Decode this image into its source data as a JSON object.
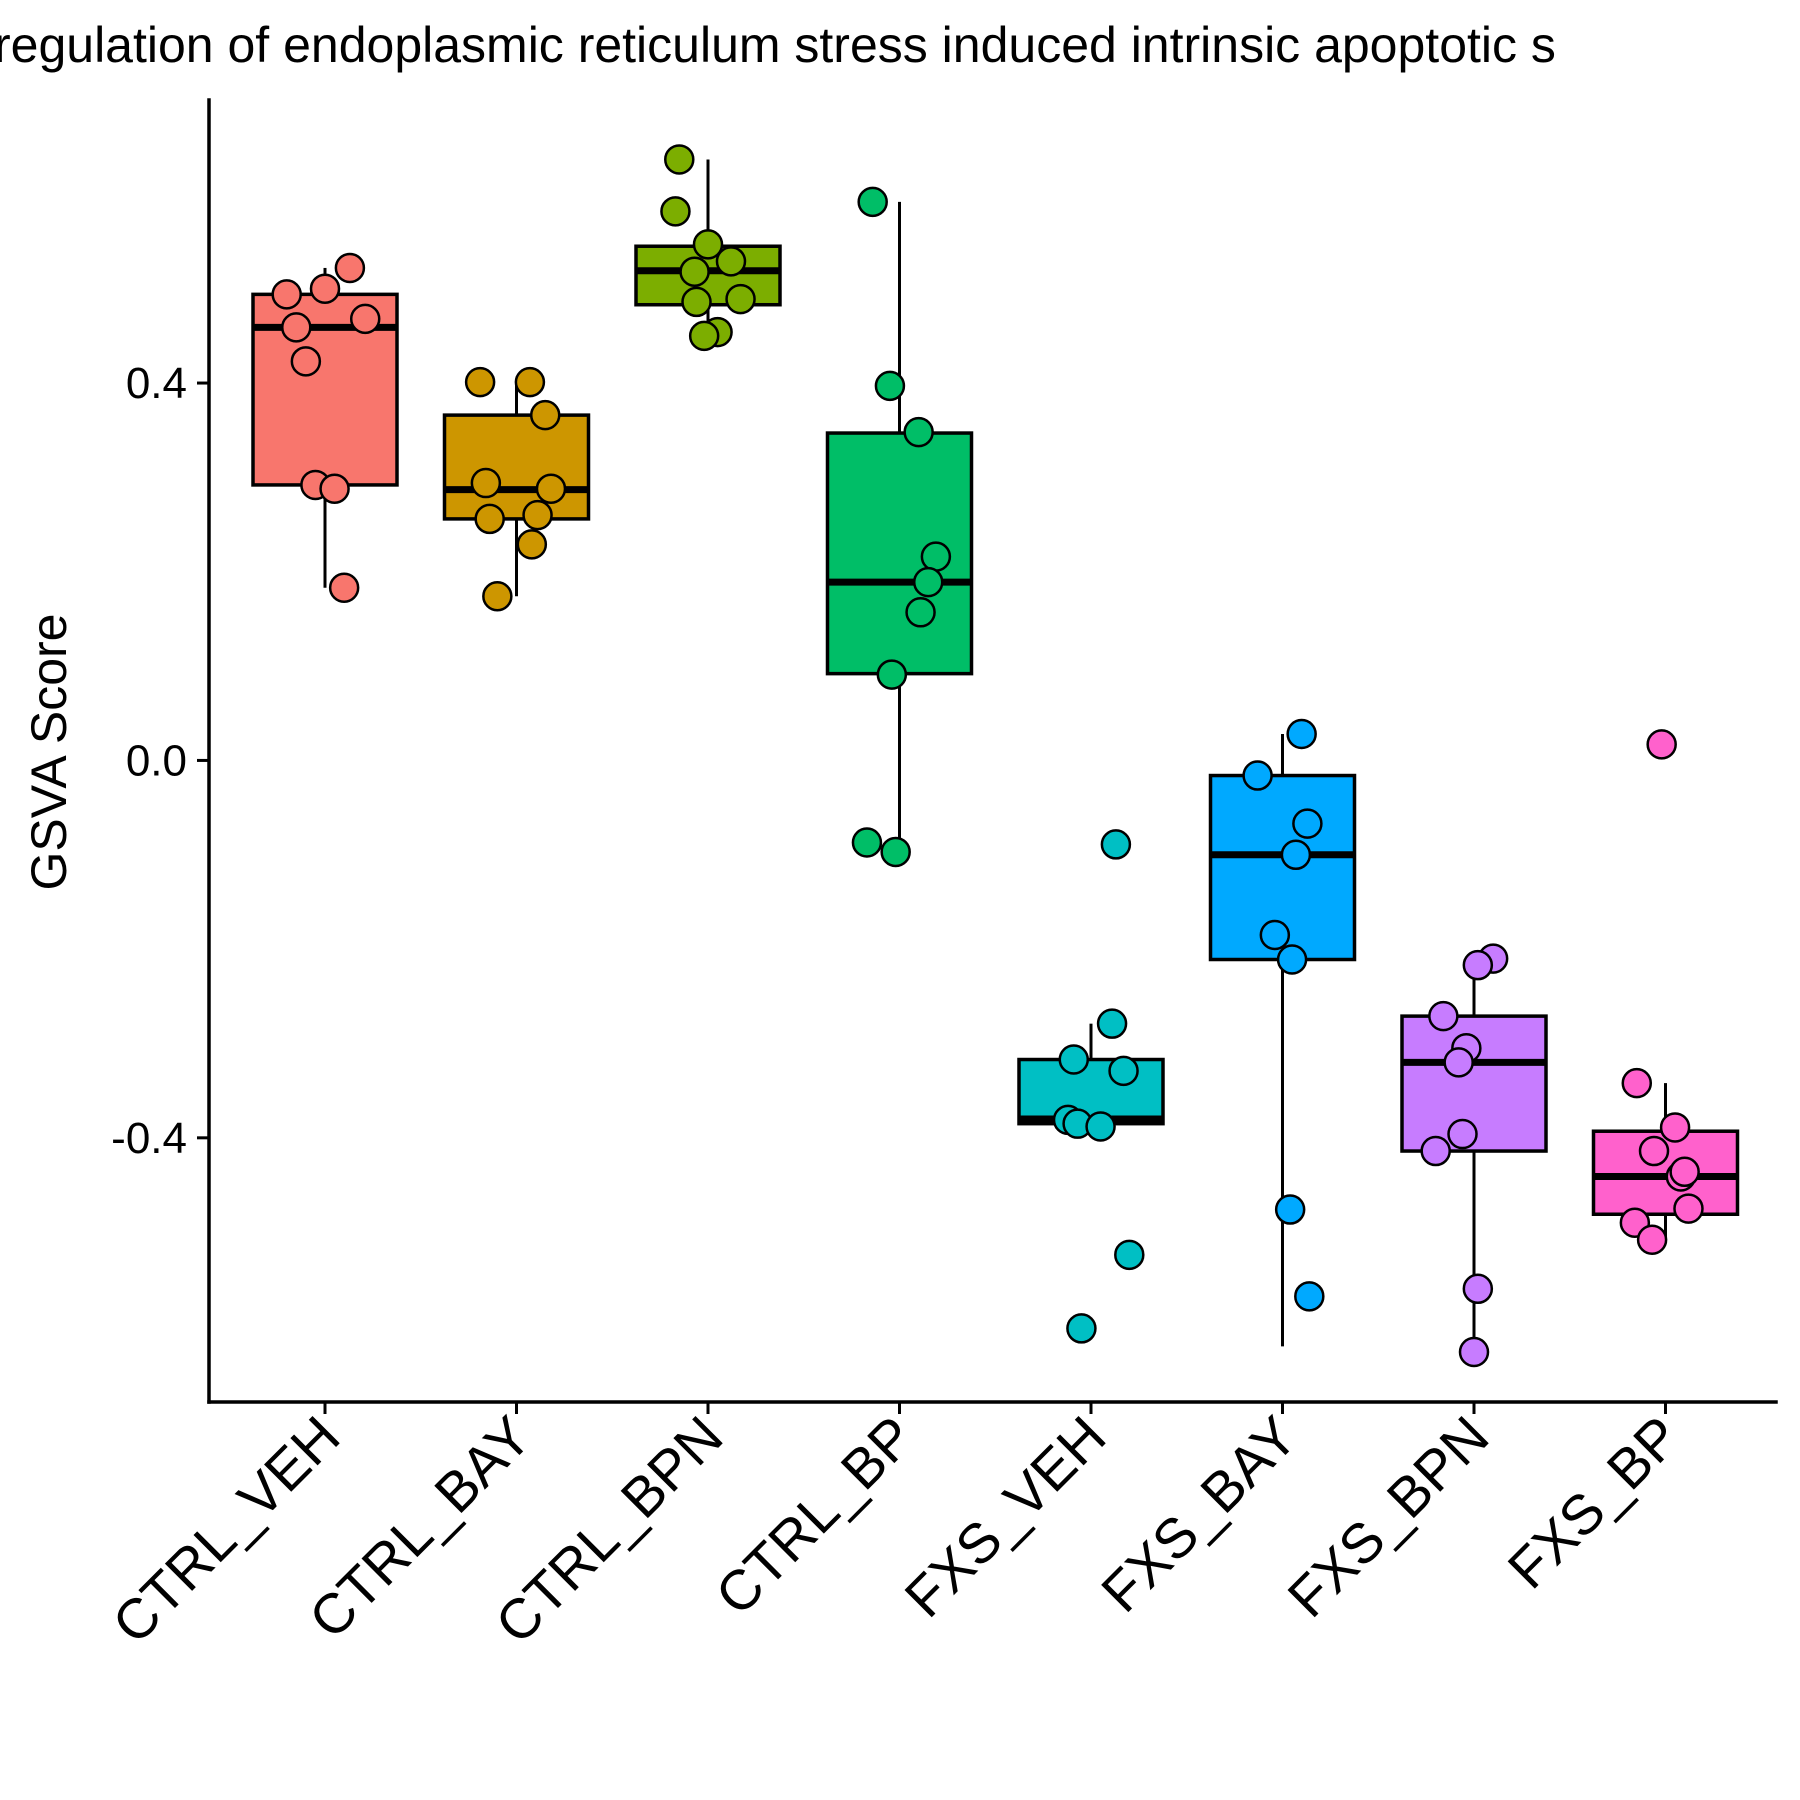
{
  "chart_data": {
    "type": "box",
    "title": "regulation of endoplasmic reticulum stress induced intrinsic apoptotic s",
    "xlabel": "",
    "ylabel": "GSVA Score",
    "ylim": [
      -0.68,
      0.7
    ],
    "yticks": [
      -0.4,
      0.0,
      0.4
    ],
    "ytick_labels": [
      "-0.4",
      "0.0",
      "0.4"
    ],
    "grid": false,
    "legend": "none",
    "categories": [
      "CTRL_VEH",
      "CTRL_BAY",
      "CTRL_BPN",
      "CTRL_BP",
      "FXS_VEH",
      "FXS_BAY",
      "FXS_BPN",
      "FXS_BP"
    ],
    "colors": [
      "#F8766D",
      "#CD9600",
      "#7CAE00",
      "#00BE67",
      "#00BFC4",
      "#00A9FF",
      "#C77CFF",
      "#FF61CC"
    ],
    "boxes": [
      {
        "lower_whisker": 0.183,
        "q1": 0.292,
        "median": 0.459,
        "q3": 0.494,
        "upper_whisker": 0.522
      },
      {
        "lower_whisker": 0.174,
        "q1": 0.256,
        "median": 0.287,
        "q3": 0.366,
        "upper_whisker": 0.401
      },
      {
        "lower_whisker": 0.45,
        "q1": 0.483,
        "median": 0.519,
        "q3": 0.545,
        "upper_whisker": 0.637
      },
      {
        "lower_whisker": -0.097,
        "q1": 0.092,
        "median": 0.189,
        "q3": 0.347,
        "upper_whisker": 0.592
      },
      {
        "lower_whisker": -0.385,
        "q1": -0.385,
        "median": -0.38,
        "q3": -0.317,
        "upper_whisker": -0.279
      },
      {
        "lower_whisker": -0.621,
        "q1": -0.211,
        "median": -0.1,
        "q3": -0.016,
        "upper_whisker": 0.028
      },
      {
        "lower_whisker": -0.627,
        "q1": -0.414,
        "median": -0.32,
        "q3": -0.271,
        "upper_whisker": -0.21
      },
      {
        "lower_whisker": -0.508,
        "q1": -0.481,
        "median": -0.441,
        "q3": -0.393,
        "upper_whisker": -0.342
      }
    ],
    "points": [
      {
        "x": [
          -0.2,
          -0.15,
          0.0,
          0.13,
          0.21,
          -0.1,
          -0.05,
          0.05,
          0.1
        ],
        "y": [
          0.494,
          0.459,
          0.5,
          0.522,
          0.468,
          0.423,
          0.292,
          0.288,
          0.183
        ]
      },
      {
        "x": [
          -0.19,
          0.07,
          0.15,
          -0.16,
          0.18,
          -0.14,
          0.11,
          0.08,
          -0.1
        ],
        "y": [
          0.401,
          0.401,
          0.366,
          0.294,
          0.288,
          0.256,
          0.26,
          0.229,
          0.174
        ]
      },
      {
        "x": [
          -0.15,
          -0.17,
          0.0,
          0.12,
          -0.07,
          0.17,
          -0.06,
          0.05,
          -0.02
        ],
        "y": [
          0.637,
          0.582,
          0.547,
          0.529,
          0.518,
          0.489,
          0.486,
          0.454,
          0.45
        ]
      },
      {
        "x": [
          -0.14,
          -0.05,
          0.1,
          0.19,
          0.15,
          0.11,
          -0.04,
          -0.17,
          -0.02
        ],
        "y": [
          0.592,
          0.397,
          0.348,
          0.216,
          0.189,
          0.157,
          0.091,
          -0.087,
          -0.097
        ]
      },
      {
        "x": [
          0.13,
          0.11,
          -0.09,
          0.17,
          -0.12,
          -0.07,
          0.05,
          0.2,
          -0.05
        ],
        "y": [
          -0.089,
          -0.279,
          -0.317,
          -0.329,
          -0.381,
          -0.385,
          -0.388,
          -0.524,
          -0.602
        ]
      },
      {
        "x": [
          0.1,
          -0.13,
          0.13,
          0.07,
          -0.04,
          0.05,
          0.04,
          0.14
        ],
        "y": [
          0.028,
          -0.016,
          -0.067,
          -0.1,
          -0.185,
          -0.211,
          -0.476,
          -0.568
        ]
      },
      {
        "x": [
          0.1,
          0.02,
          -0.16,
          -0.04,
          -0.08,
          -0.06,
          -0.2,
          0.02,
          0.0
        ],
        "y": [
          -0.21,
          -0.217,
          -0.271,
          -0.305,
          -0.32,
          -0.396,
          -0.414,
          -0.56,
          -0.627
        ]
      },
      {
        "x": [
          -0.02,
          -0.15,
          0.05,
          -0.06,
          0.08,
          0.1,
          0.12,
          -0.16,
          -0.07
        ],
        "y": [
          0.017,
          -0.342,
          -0.389,
          -0.414,
          -0.441,
          -0.436,
          -0.475,
          -0.49,
          -0.508
        ]
      }
    ]
  }
}
